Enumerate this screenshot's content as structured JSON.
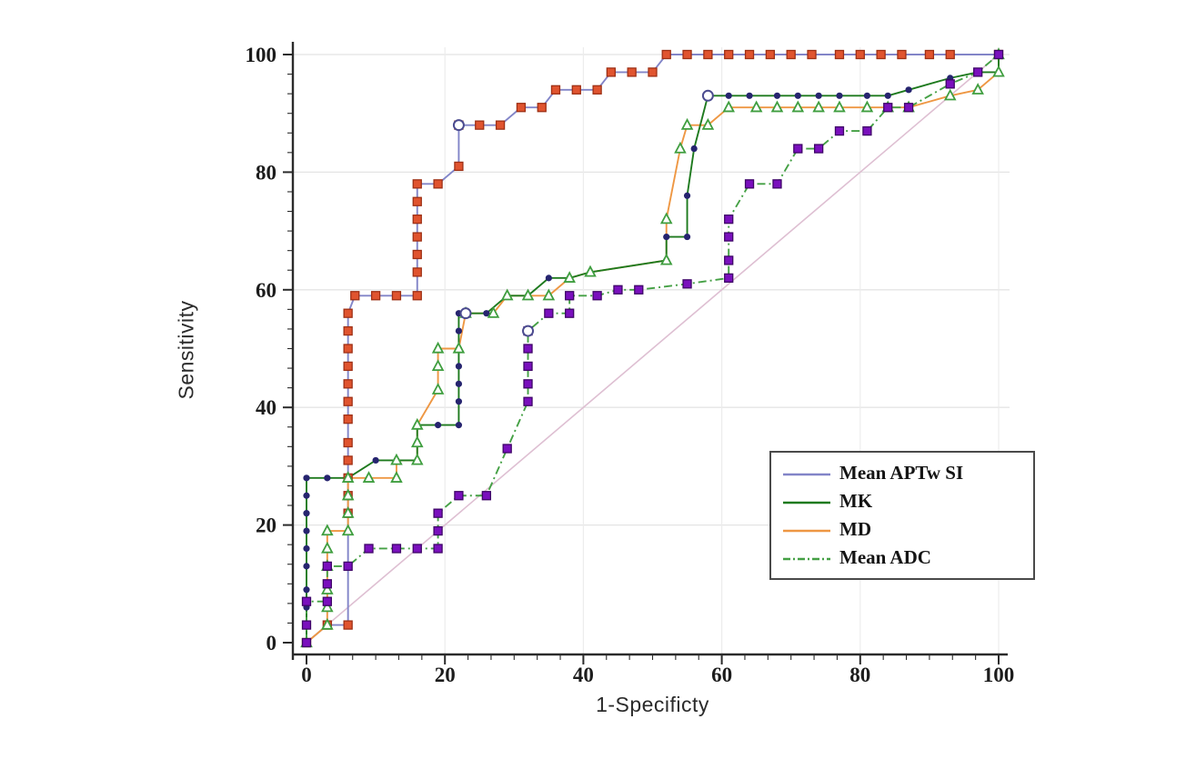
{
  "chart_data": {
    "type": "line",
    "subtype": "roc-curves",
    "title": "",
    "xlabel": "1-Specificty",
    "ylabel": "Sensitivity",
    "xlim": [
      0,
      100
    ],
    "ylim": [
      0,
      100
    ],
    "x_ticks": [
      0,
      20,
      40,
      60,
      80,
      100
    ],
    "y_ticks": [
      0,
      20,
      40,
      60,
      80,
      100
    ],
    "grid": true,
    "legend": {
      "position": "lower-right",
      "border": true
    },
    "reference_line": {
      "label": "chance-diagonal",
      "color": "#debfd2",
      "points": [
        [
          0,
          0
        ],
        [
          100,
          100
        ]
      ]
    },
    "series": [
      {
        "name": "Mean APTw SI",
        "line_color": "#8285c8",
        "line_style": "solid",
        "marker": "square",
        "marker_color": "#e0542f",
        "marker_edge": "#9e3015",
        "optimal_point": [
          22,
          88
        ],
        "points": [
          [
            0,
            0
          ],
          [
            3,
            3
          ],
          [
            6,
            3
          ],
          [
            6,
            22
          ],
          [
            6,
            25
          ],
          [
            6,
            28
          ],
          [
            6,
            31
          ],
          [
            6,
            34
          ],
          [
            6,
            38
          ],
          [
            6,
            41
          ],
          [
            6,
            44
          ],
          [
            6,
            47
          ],
          [
            6,
            50
          ],
          [
            6,
            53
          ],
          [
            6,
            56
          ],
          [
            7,
            59
          ],
          [
            10,
            59
          ],
          [
            13,
            59
          ],
          [
            16,
            59
          ],
          [
            16,
            63
          ],
          [
            16,
            66
          ],
          [
            16,
            69
          ],
          [
            16,
            72
          ],
          [
            16,
            75
          ],
          [
            16,
            78
          ],
          [
            19,
            78
          ],
          [
            22,
            81
          ],
          [
            22,
            88
          ],
          [
            25,
            88
          ],
          [
            28,
            88
          ],
          [
            31,
            91
          ],
          [
            34,
            91
          ],
          [
            36,
            94
          ],
          [
            39,
            94
          ],
          [
            42,
            94
          ],
          [
            44,
            97
          ],
          [
            47,
            97
          ],
          [
            50,
            97
          ],
          [
            52,
            100
          ],
          [
            55,
            100
          ],
          [
            58,
            100
          ],
          [
            61,
            100
          ],
          [
            64,
            100
          ],
          [
            67,
            100
          ],
          [
            70,
            100
          ],
          [
            73,
            100
          ],
          [
            77,
            100
          ],
          [
            80,
            100
          ],
          [
            83,
            100
          ],
          [
            86,
            100
          ],
          [
            90,
            100
          ],
          [
            93,
            100
          ],
          [
            100,
            100
          ]
        ]
      },
      {
        "name": "MK",
        "line_color": "#1e7a1e",
        "line_style": "solid",
        "marker": "dot",
        "marker_color": "#26246f",
        "marker_edge": "#26246f",
        "optimal_point": [
          58,
          93
        ],
        "points": [
          [
            0,
            0
          ],
          [
            0,
            3
          ],
          [
            0,
            6
          ],
          [
            0,
            9
          ],
          [
            0,
            13
          ],
          [
            0,
            16
          ],
          [
            0,
            19
          ],
          [
            0,
            22
          ],
          [
            0,
            25
          ],
          [
            0,
            28
          ],
          [
            3,
            28
          ],
          [
            6,
            28
          ],
          [
            10,
            31
          ],
          [
            13,
            31
          ],
          [
            16,
            31
          ],
          [
            16,
            34
          ],
          [
            16,
            37
          ],
          [
            19,
            37
          ],
          [
            22,
            37
          ],
          [
            22,
            41
          ],
          [
            22,
            44
          ],
          [
            22,
            47
          ],
          [
            22,
            50
          ],
          [
            22,
            53
          ],
          [
            22,
            56
          ],
          [
            26,
            56
          ],
          [
            29,
            59
          ],
          [
            32,
            59
          ],
          [
            35,
            62
          ],
          [
            38,
            62
          ],
          [
            41,
            63
          ],
          [
            52,
            65
          ],
          [
            52,
            69
          ],
          [
            55,
            69
          ],
          [
            55,
            76
          ],
          [
            56,
            84
          ],
          [
            58,
            93
          ],
          [
            61,
            93
          ],
          [
            64,
            93
          ],
          [
            68,
            93
          ],
          [
            71,
            93
          ],
          [
            74,
            93
          ],
          [
            77,
            93
          ],
          [
            81,
            93
          ],
          [
            84,
            93
          ],
          [
            87,
            94
          ],
          [
            93,
            96
          ],
          [
            97,
            97
          ],
          [
            100,
            97
          ],
          [
            100,
            100
          ]
        ]
      },
      {
        "name": "MD",
        "line_color": "#ee9743",
        "line_style": "solid",
        "marker": "triangle-open",
        "marker_color": "#ffffff",
        "marker_edge": "#3f9e3f",
        "optimal_point": [
          23,
          56
        ],
        "points": [
          [
            0,
            0
          ],
          [
            3,
            3
          ],
          [
            3,
            6
          ],
          [
            3,
            9
          ],
          [
            3,
            13
          ],
          [
            3,
            16
          ],
          [
            3,
            19
          ],
          [
            6,
            19
          ],
          [
            6,
            22
          ],
          [
            6,
            25
          ],
          [
            6,
            28
          ],
          [
            9,
            28
          ],
          [
            13,
            28
          ],
          [
            13,
            31
          ],
          [
            16,
            31
          ],
          [
            16,
            34
          ],
          [
            16,
            37
          ],
          [
            19,
            43
          ],
          [
            19,
            47
          ],
          [
            19,
            50
          ],
          [
            22,
            50
          ],
          [
            23,
            56
          ],
          [
            27,
            56
          ],
          [
            29,
            59
          ],
          [
            32,
            59
          ],
          [
            35,
            59
          ],
          [
            38,
            62
          ],
          [
            41,
            63
          ],
          [
            52,
            65
          ],
          [
            52,
            72
          ],
          [
            54,
            84
          ],
          [
            55,
            88
          ],
          [
            58,
            88
          ],
          [
            61,
            91
          ],
          [
            65,
            91
          ],
          [
            68,
            91
          ],
          [
            71,
            91
          ],
          [
            74,
            91
          ],
          [
            77,
            91
          ],
          [
            81,
            91
          ],
          [
            84,
            91
          ],
          [
            87,
            91
          ],
          [
            93,
            93
          ],
          [
            97,
            94
          ],
          [
            100,
            97
          ],
          [
            100,
            100
          ]
        ]
      },
      {
        "name": "Mean ADC",
        "line_color": "#44a044",
        "line_style": "dash-dot",
        "marker": "square",
        "marker_color": "#7a10bd",
        "marker_edge": "#3f0668",
        "optimal_point": [
          32,
          53
        ],
        "points": [
          [
            0,
            0
          ],
          [
            0,
            3
          ],
          [
            0,
            7
          ],
          [
            3,
            7
          ],
          [
            3,
            10
          ],
          [
            3,
            13
          ],
          [
            6,
            13
          ],
          [
            9,
            16
          ],
          [
            13,
            16
          ],
          [
            16,
            16
          ],
          [
            19,
            16
          ],
          [
            19,
            19
          ],
          [
            19,
            22
          ],
          [
            22,
            25
          ],
          [
            26,
            25
          ],
          [
            29,
            33
          ],
          [
            32,
            41
          ],
          [
            32,
            44
          ],
          [
            32,
            47
          ],
          [
            32,
            50
          ],
          [
            32,
            53
          ],
          [
            35,
            56
          ],
          [
            38,
            56
          ],
          [
            38,
            59
          ],
          [
            42,
            59
          ],
          [
            45,
            60
          ],
          [
            48,
            60
          ],
          [
            55,
            61
          ],
          [
            61,
            62
          ],
          [
            61,
            65
          ],
          [
            61,
            69
          ],
          [
            61,
            72
          ],
          [
            64,
            78
          ],
          [
            68,
            78
          ],
          [
            71,
            84
          ],
          [
            74,
            84
          ],
          [
            77,
            87
          ],
          [
            81,
            87
          ],
          [
            84,
            91
          ],
          [
            87,
            91
          ],
          [
            93,
            95
          ],
          [
            97,
            97
          ],
          [
            100,
            100
          ]
        ]
      }
    ]
  }
}
